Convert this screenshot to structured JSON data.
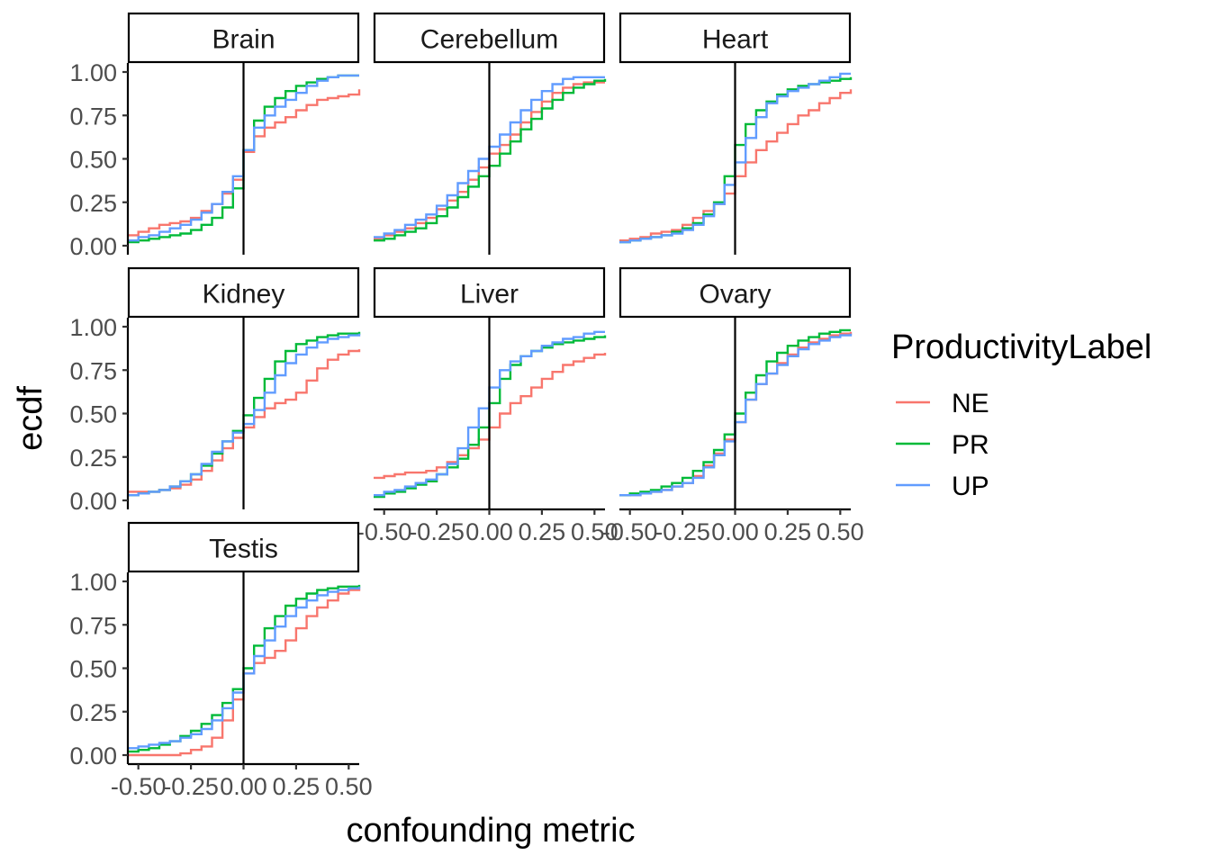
{
  "chart_data": {
    "type": "line",
    "subtype": "ecdf-step-facets",
    "xlabel": "confounding metric",
    "ylabel": "ecdf",
    "xlim": [
      -0.55,
      0.55
    ],
    "ylim": [
      0,
      1
    ],
    "x_ticks": [
      "-0.50",
      "-0.25",
      "0.00",
      "0.25",
      "0.50"
    ],
    "y_ticks": [
      "0.00",
      "0.25",
      "0.50",
      "0.75",
      "1.00"
    ],
    "vline_x": 0,
    "grid": false,
    "legend": {
      "title": "ProductivityLabel",
      "position": "right",
      "items": [
        {
          "name": "NE",
          "color": "#F8766D"
        },
        {
          "name": "PR",
          "color": "#00BA38"
        },
        {
          "name": "UP",
          "color": "#619CFF"
        }
      ]
    },
    "x_grid_points": [
      -0.55,
      -0.5,
      -0.45,
      -0.4,
      -0.35,
      -0.3,
      -0.25,
      -0.2,
      -0.15,
      -0.1,
      -0.05,
      0,
      0.05,
      0.1,
      0.15,
      0.2,
      0.25,
      0.3,
      0.35,
      0.4,
      0.45,
      0.5,
      0.55
    ],
    "facets": [
      {
        "name": "Brain",
        "series": [
          {
            "name": "NE",
            "values": [
              0.06,
              0.08,
              0.1,
              0.12,
              0.13,
              0.14,
              0.16,
              0.2,
              0.24,
              0.3,
              0.38,
              0.54,
              0.63,
              0.68,
              0.71,
              0.74,
              0.78,
              0.81,
              0.84,
              0.85,
              0.86,
              0.87,
              0.9
            ]
          },
          {
            "name": "PR",
            "values": [
              0.02,
              0.03,
              0.04,
              0.05,
              0.06,
              0.07,
              0.09,
              0.12,
              0.16,
              0.22,
              0.33,
              0.55,
              0.72,
              0.8,
              0.85,
              0.89,
              0.92,
              0.94,
              0.96,
              0.97,
              0.98,
              0.98,
              0.98
            ]
          },
          {
            "name": "UP",
            "values": [
              0.03,
              0.05,
              0.06,
              0.08,
              0.1,
              0.12,
              0.15,
              0.19,
              0.24,
              0.31,
              0.4,
              0.55,
              0.68,
              0.75,
              0.8,
              0.84,
              0.88,
              0.92,
              0.95,
              0.97,
              0.98,
              0.98,
              0.98
            ]
          }
        ]
      },
      {
        "name": "Cerebellum",
        "series": [
          {
            "name": "NE",
            "values": [
              0.04,
              0.06,
              0.08,
              0.1,
              0.13,
              0.16,
              0.21,
              0.26,
              0.31,
              0.38,
              0.45,
              0.53,
              0.58,
              0.64,
              0.71,
              0.77,
              0.83,
              0.88,
              0.91,
              0.93,
              0.94,
              0.94,
              0.94
            ]
          },
          {
            "name": "PR",
            "values": [
              0.03,
              0.04,
              0.06,
              0.08,
              0.1,
              0.13,
              0.17,
              0.22,
              0.28,
              0.34,
              0.4,
              0.46,
              0.53,
              0.6,
              0.67,
              0.73,
              0.79,
              0.84,
              0.88,
              0.91,
              0.93,
              0.95,
              0.96
            ]
          },
          {
            "name": "UP",
            "values": [
              0.05,
              0.07,
              0.09,
              0.12,
              0.15,
              0.18,
              0.23,
              0.29,
              0.36,
              0.43,
              0.5,
              0.57,
              0.64,
              0.71,
              0.78,
              0.84,
              0.89,
              0.93,
              0.96,
              0.97,
              0.97,
              0.97,
              0.97
            ]
          }
        ]
      },
      {
        "name": "Heart",
        "series": [
          {
            "name": "NE",
            "values": [
              0.03,
              0.04,
              0.05,
              0.07,
              0.08,
              0.09,
              0.12,
              0.16,
              0.2,
              0.24,
              0.3,
              0.4,
              0.48,
              0.55,
              0.6,
              0.65,
              0.7,
              0.75,
              0.78,
              0.82,
              0.85,
              0.88,
              0.9
            ]
          },
          {
            "name": "PR",
            "values": [
              0.02,
              0.03,
              0.04,
              0.05,
              0.06,
              0.08,
              0.1,
              0.13,
              0.18,
              0.25,
              0.4,
              0.58,
              0.7,
              0.78,
              0.83,
              0.87,
              0.9,
              0.92,
              0.93,
              0.94,
              0.95,
              0.96,
              0.97
            ]
          },
          {
            "name": "UP",
            "values": [
              0.02,
              0.03,
              0.04,
              0.05,
              0.06,
              0.07,
              0.09,
              0.12,
              0.17,
              0.24,
              0.35,
              0.48,
              0.62,
              0.74,
              0.82,
              0.86,
              0.89,
              0.91,
              0.93,
              0.95,
              0.97,
              0.99,
              0.99
            ]
          }
        ]
      },
      {
        "name": "Kidney",
        "series": [
          {
            "name": "NE",
            "values": [
              0.05,
              0.05,
              0.05,
              0.06,
              0.07,
              0.09,
              0.12,
              0.17,
              0.23,
              0.3,
              0.36,
              0.42,
              0.48,
              0.53,
              0.56,
              0.58,
              0.62,
              0.69,
              0.76,
              0.81,
              0.84,
              0.86,
              0.87
            ]
          },
          {
            "name": "PR",
            "values": [
              0.03,
              0.04,
              0.05,
              0.06,
              0.08,
              0.11,
              0.15,
              0.2,
              0.27,
              0.34,
              0.4,
              0.49,
              0.59,
              0.7,
              0.8,
              0.86,
              0.9,
              0.92,
              0.94,
              0.95,
              0.96,
              0.96,
              0.97
            ]
          },
          {
            "name": "UP",
            "values": [
              0.03,
              0.04,
              0.05,
              0.06,
              0.08,
              0.11,
              0.15,
              0.21,
              0.28,
              0.34,
              0.39,
              0.44,
              0.52,
              0.62,
              0.72,
              0.79,
              0.84,
              0.88,
              0.91,
              0.93,
              0.94,
              0.95,
              0.96
            ]
          }
        ]
      },
      {
        "name": "Liver",
        "series": [
          {
            "name": "NE",
            "values": [
              0.13,
              0.14,
              0.15,
              0.16,
              0.16,
              0.17,
              0.19,
              0.22,
              0.26,
              0.3,
              0.35,
              0.42,
              0.5,
              0.56,
              0.6,
              0.65,
              0.7,
              0.74,
              0.78,
              0.8,
              0.82,
              0.84,
              0.85
            ]
          },
          {
            "name": "PR",
            "values": [
              0.02,
              0.04,
              0.05,
              0.07,
              0.09,
              0.11,
              0.15,
              0.19,
              0.24,
              0.32,
              0.42,
              0.56,
              0.7,
              0.78,
              0.83,
              0.86,
              0.88,
              0.9,
              0.91,
              0.92,
              0.93,
              0.94,
              0.95
            ]
          },
          {
            "name": "UP",
            "values": [
              0.03,
              0.05,
              0.06,
              0.08,
              0.1,
              0.12,
              0.15,
              0.21,
              0.3,
              0.42,
              0.53,
              0.65,
              0.75,
              0.8,
              0.83,
              0.86,
              0.89,
              0.91,
              0.93,
              0.94,
              0.96,
              0.97,
              0.97
            ]
          }
        ]
      },
      {
        "name": "Ovary",
        "series": [
          {
            "name": "NE",
            "values": [
              0.03,
              0.03,
              0.04,
              0.05,
              0.06,
              0.08,
              0.1,
              0.14,
              0.2,
              0.27,
              0.35,
              0.45,
              0.58,
              0.67,
              0.73,
              0.79,
              0.84,
              0.88,
              0.91,
              0.93,
              0.95,
              0.96,
              0.97
            ]
          },
          {
            "name": "PR",
            "values": [
              0.03,
              0.04,
              0.05,
              0.06,
              0.08,
              0.1,
              0.13,
              0.17,
              0.22,
              0.29,
              0.38,
              0.5,
              0.62,
              0.72,
              0.8,
              0.85,
              0.89,
              0.92,
              0.94,
              0.96,
              0.97,
              0.98,
              0.98
            ]
          },
          {
            "name": "UP",
            "values": [
              0.03,
              0.03,
              0.04,
              0.05,
              0.06,
              0.08,
              0.1,
              0.13,
              0.19,
              0.26,
              0.34,
              0.45,
              0.58,
              0.67,
              0.73,
              0.78,
              0.83,
              0.87,
              0.9,
              0.92,
              0.94,
              0.95,
              0.96
            ]
          }
        ]
      },
      {
        "name": "Testis",
        "series": [
          {
            "name": "NE",
            "values": [
              0,
              0,
              0,
              0,
              0,
              0.01,
              0.03,
              0.05,
              0.1,
              0.2,
              0.32,
              0.47,
              0.53,
              0.56,
              0.6,
              0.66,
              0.73,
              0.8,
              0.85,
              0.89,
              0.93,
              0.95,
              0.96
            ]
          },
          {
            "name": "PR",
            "values": [
              0.02,
              0.03,
              0.04,
              0.06,
              0.08,
              0.11,
              0.14,
              0.18,
              0.23,
              0.3,
              0.38,
              0.5,
              0.63,
              0.73,
              0.8,
              0.86,
              0.9,
              0.93,
              0.95,
              0.96,
              0.97,
              0.97,
              0.98
            ]
          },
          {
            "name": "UP",
            "values": [
              0.04,
              0.05,
              0.06,
              0.07,
              0.08,
              0.1,
              0.12,
              0.15,
              0.2,
              0.27,
              0.36,
              0.47,
              0.57,
              0.66,
              0.74,
              0.8,
              0.85,
              0.89,
              0.92,
              0.94,
              0.95,
              0.96,
              0.97
            ]
          }
        ]
      }
    ]
  }
}
